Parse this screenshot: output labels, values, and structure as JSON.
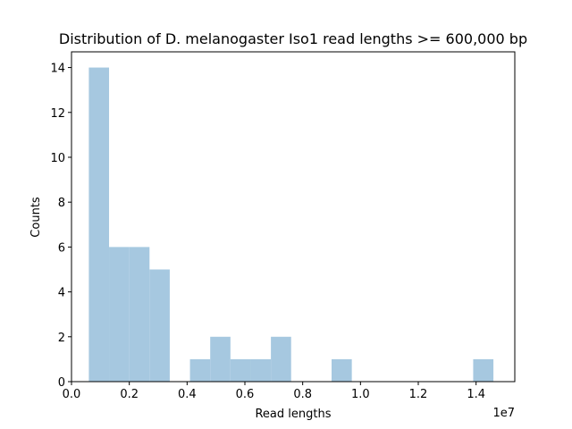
{
  "chart_data": {
    "type": "bar",
    "title": "Distribution of D. melanogaster Iso1 read lengths >= 600,000 bp",
    "xlabel": "Read lengths",
    "ylabel": "Counts",
    "x_offset_text": "1e7",
    "xlim": [
      0.0,
      15340000
    ],
    "ylim": [
      0,
      14.7
    ],
    "x_ticks": [
      0,
      2000000,
      4000000,
      6000000,
      8000000,
      10000000,
      12000000,
      14000000
    ],
    "x_tick_labels": [
      "0.0",
      "0.2",
      "0.4",
      "0.6",
      "0.8",
      "1.0",
      "1.2",
      "1.4"
    ],
    "y_ticks": [
      0,
      2,
      4,
      6,
      8,
      10,
      12,
      14
    ],
    "y_tick_labels": [
      "0",
      "2",
      "4",
      "6",
      "8",
      "10",
      "12",
      "14"
    ],
    "bin_edges": [
      600000,
      1300000,
      2000000,
      2700000,
      3400000,
      4100000,
      4800000,
      5500000,
      6200000,
      6900000,
      7600000,
      8300000,
      9000000,
      9700000,
      10400000,
      11100000,
      11800000,
      12500000,
      13200000,
      13900000,
      14600000
    ],
    "values": [
      14,
      6,
      6,
      5,
      0,
      1,
      2,
      1,
      1,
      2,
      0,
      0,
      1,
      0,
      0,
      0,
      0,
      0,
      0,
      1
    ],
    "bar_color": "#a6c8e0",
    "grid": false
  }
}
